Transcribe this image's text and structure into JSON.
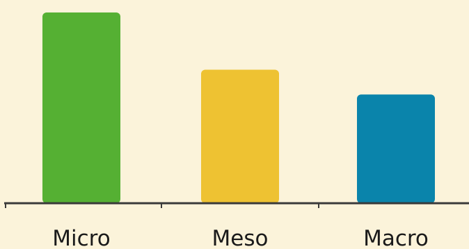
{
  "chart_data": {
    "type": "bar",
    "categories": [
      "Micro",
      "Meso",
      "Macro"
    ],
    "values": [
      100,
      70,
      57
    ],
    "colors": [
      "#55b033",
      "#eec232",
      "#0a84ab"
    ],
    "ylim": [
      0,
      100
    ],
    "grid": false,
    "legend": "none",
    "title": "",
    "xlabel": "",
    "ylabel": ""
  },
  "colors": {
    "background": "#fbf3da",
    "axis": "#3a3a3a"
  }
}
